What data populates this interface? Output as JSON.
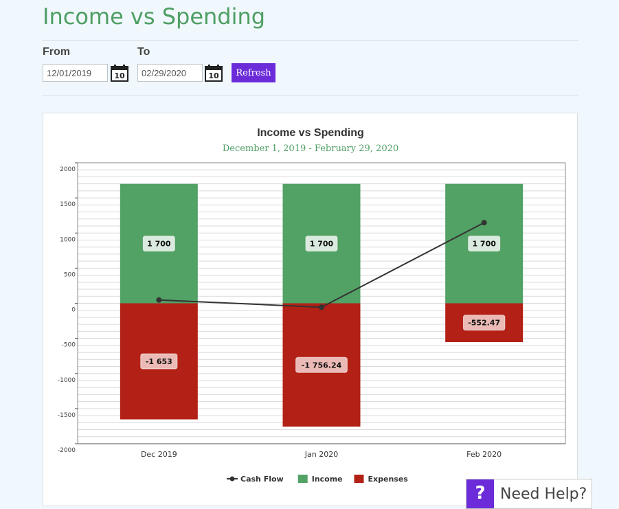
{
  "page": {
    "title": "Income vs Spending"
  },
  "filters": {
    "from_label": "From",
    "from_value": "12/01/2019",
    "from_calendar_day": "10",
    "to_label": "To",
    "to_value": "02/29/2020",
    "to_calendar_day": "10",
    "refresh_label": "Refresh"
  },
  "help": {
    "icon_text": "?",
    "label": "Need Help?"
  },
  "chart_data": {
    "type": "bar",
    "title": "Income vs Spending",
    "subtitle": "December 1, 2019 - February 29, 2020",
    "categories": [
      "Dec 2019",
      "Jan 2020",
      "Feb 2020"
    ],
    "ylim": [
      -2000,
      2000
    ],
    "yticks": [
      2000,
      1500,
      1000,
      500,
      0,
      -500,
      -1000,
      -1500,
      -2000
    ],
    "stacked": true,
    "grid": true,
    "legend_position": "bottom",
    "series": [
      {
        "name": "Income",
        "type": "bar",
        "color": "#52a165",
        "values": [
          1700,
          1700,
          1700
        ],
        "labels": [
          "1 700",
          "1 700",
          "1 700"
        ]
      },
      {
        "name": "Expenses",
        "type": "bar",
        "color": "#b32015",
        "values": [
          -1653,
          -1756.24,
          -552.47
        ],
        "labels": [
          "-1 653",
          "-1 756.24",
          "-552.47"
        ]
      },
      {
        "name": "Cash Flow",
        "type": "line",
        "color": "#333333",
        "values": [
          47,
          -56.24,
          1147.53
        ]
      }
    ]
  }
}
